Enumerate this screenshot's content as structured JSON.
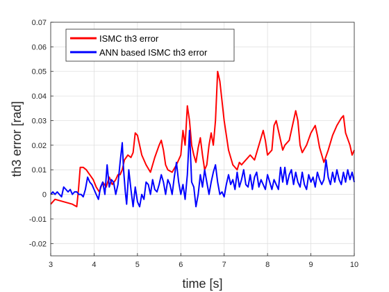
{
  "chart_data": {
    "type": "line",
    "xlabel": "time [s]",
    "ylabel": "th3 error [rad]",
    "xlim": [
      3,
      10
    ],
    "ylim": [
      -0.025,
      0.07
    ],
    "xticks": [
      3,
      4,
      5,
      6,
      7,
      8,
      9,
      10
    ],
    "xtick_labels": [
      "3",
      "4",
      "5",
      "6",
      "7",
      "8",
      "9",
      "10"
    ],
    "yticks": [
      -0.02,
      -0.01,
      0,
      0.01,
      0.02,
      0.03,
      0.04,
      0.05,
      0.06,
      0.07
    ],
    "ytick_labels": [
      "-0.02",
      "-0.01",
      "0",
      "0.01",
      "0.02",
      "0.03",
      "0.04",
      "0.05",
      "0.06",
      "0.07"
    ],
    "grid": true,
    "legend_position": "top-left",
    "series": [
      {
        "name": "ISMC th3 error",
        "color": "#ff0000",
        "x": [
          3.0,
          3.1,
          3.3,
          3.5,
          3.6,
          3.64,
          3.68,
          3.75,
          3.82,
          3.9,
          3.98,
          4.05,
          4.12,
          4.2,
          4.28,
          4.35,
          4.42,
          4.5,
          4.55,
          4.6,
          4.65,
          4.7,
          4.78,
          4.85,
          4.9,
          4.95,
          5.0,
          5.05,
          5.1,
          5.2,
          5.3,
          5.35,
          5.4,
          5.5,
          5.55,
          5.6,
          5.65,
          5.7,
          5.8,
          5.9,
          6.0,
          6.05,
          6.1,
          6.15,
          6.2,
          6.25,
          6.3,
          6.35,
          6.4,
          6.45,
          6.5,
          6.55,
          6.6,
          6.65,
          6.7,
          6.75,
          6.8,
          6.85,
          6.9,
          7.0,
          7.1,
          7.2,
          7.3,
          7.35,
          7.4,
          7.5,
          7.6,
          7.7,
          7.8,
          7.9,
          7.95,
          8.0,
          8.1,
          8.15,
          8.2,
          8.3,
          8.35,
          8.4,
          8.5,
          8.6,
          8.65,
          8.7,
          8.75,
          8.8,
          8.9,
          9.0,
          9.1,
          9.15,
          9.2,
          9.25,
          9.3,
          9.4,
          9.5,
          9.6,
          9.7,
          9.75,
          9.8,
          9.9,
          9.95,
          10.0
        ],
        "values": [
          -0.004,
          -0.002,
          -0.003,
          -0.004,
          -0.005,
          0.002,
          0.011,
          0.011,
          0.01,
          0.008,
          0.006,
          0.003,
          0.001,
          0.005,
          0.003,
          0.007,
          0.004,
          0.006,
          0.008,
          0.008,
          0.01,
          0.014,
          0.016,
          0.015,
          0.017,
          0.025,
          0.024,
          0.02,
          0.016,
          0.012,
          0.009,
          0.012,
          0.015,
          0.02,
          0.022,
          0.018,
          0.012,
          0.01,
          0.009,
          0.012,
          0.016,
          0.026,
          0.02,
          0.036,
          0.03,
          0.02,
          0.016,
          0.013,
          0.019,
          0.023,
          0.016,
          0.01,
          0.012,
          0.02,
          0.025,
          0.02,
          0.03,
          0.05,
          0.046,
          0.03,
          0.018,
          0.012,
          0.01,
          0.013,
          0.012,
          0.014,
          0.016,
          0.014,
          0.02,
          0.026,
          0.022,
          0.016,
          0.018,
          0.028,
          0.03,
          0.022,
          0.018,
          0.02,
          0.022,
          0.03,
          0.034,
          0.03,
          0.02,
          0.017,
          0.02,
          0.025,
          0.028,
          0.024,
          0.019,
          0.016,
          0.013,
          0.018,
          0.024,
          0.028,
          0.031,
          0.032,
          0.025,
          0.02,
          0.016,
          0.018
        ]
      },
      {
        "name": "ANN based ISMC th3 error",
        "color": "#0000ff",
        "x": [
          3.0,
          3.05,
          3.1,
          3.15,
          3.2,
          3.25,
          3.3,
          3.35,
          3.4,
          3.45,
          3.5,
          3.55,
          3.6,
          3.65,
          3.7,
          3.75,
          3.8,
          3.85,
          3.9,
          3.95,
          4.0,
          4.05,
          4.1,
          4.15,
          4.2,
          4.25,
          4.3,
          4.35,
          4.4,
          4.45,
          4.5,
          4.55,
          4.6,
          4.65,
          4.68,
          4.72,
          4.75,
          4.8,
          4.85,
          4.9,
          4.95,
          5.0,
          5.05,
          5.1,
          5.15,
          5.2,
          5.25,
          5.3,
          5.35,
          5.4,
          5.45,
          5.5,
          5.55,
          5.6,
          5.65,
          5.7,
          5.75,
          5.8,
          5.85,
          5.9,
          5.95,
          6.0,
          6.05,
          6.1,
          6.15,
          6.2,
          6.25,
          6.3,
          6.35,
          6.4,
          6.45,
          6.5,
          6.55,
          6.6,
          6.65,
          6.7,
          6.75,
          6.8,
          6.85,
          6.9,
          6.95,
          7.0,
          7.05,
          7.1,
          7.15,
          7.2,
          7.25,
          7.3,
          7.35,
          7.4,
          7.45,
          7.5,
          7.55,
          7.6,
          7.65,
          7.7,
          7.75,
          7.8,
          7.85,
          7.9,
          7.95,
          8.0,
          8.05,
          8.1,
          8.15,
          8.2,
          8.25,
          8.3,
          8.35,
          8.4,
          8.45,
          8.5,
          8.55,
          8.6,
          8.65,
          8.7,
          8.75,
          8.8,
          8.85,
          8.9,
          8.95,
          9.0,
          9.05,
          9.1,
          9.15,
          9.2,
          9.25,
          9.3,
          9.35,
          9.4,
          9.45,
          9.5,
          9.55,
          9.6,
          9.65,
          9.7,
          9.75,
          9.8,
          9.85,
          9.9,
          9.95,
          10.0
        ],
        "values": [
          0.0,
          0.001,
          0.0,
          0.001,
          0.0,
          -0.001,
          0.003,
          0.002,
          0.001,
          0.002,
          0.0,
          0.001,
          0.001,
          0.0,
          0.0,
          -0.001,
          0.002,
          0.007,
          0.005,
          0.004,
          0.002,
          0.0,
          -0.002,
          0.003,
          0.005,
          0.0,
          0.012,
          0.003,
          0.006,
          0.005,
          0.0,
          0.004,
          0.013,
          0.021,
          0.01,
          0.001,
          -0.004,
          0.01,
          0.002,
          -0.005,
          0.003,
          -0.003,
          -0.005,
          0.0,
          -0.002,
          0.005,
          0.004,
          0.0,
          0.006,
          0.002,
          0.001,
          0.004,
          0.008,
          0.005,
          0.0,
          0.006,
          0.004,
          0.0,
          0.007,
          0.013,
          0.005,
          0.0,
          0.004,
          -0.002,
          0.008,
          0.026,
          0.005,
          0.003,
          -0.005,
          0.0,
          0.008,
          0.003,
          0.01,
          0.005,
          0.0,
          0.005,
          0.009,
          0.012,
          0.005,
          0.0,
          0.001,
          -0.001,
          0.004,
          0.008,
          0.004,
          0.006,
          0.002,
          0.009,
          0.003,
          0.006,
          0.01,
          0.004,
          0.003,
          0.008,
          0.002,
          0.007,
          0.009,
          0.003,
          0.006,
          0.004,
          0.002,
          0.008,
          0.005,
          0.002,
          0.006,
          0.004,
          0.002,
          0.011,
          0.005,
          0.011,
          0.004,
          0.008,
          0.01,
          0.004,
          0.009,
          0.005,
          0.003,
          0.009,
          0.004,
          0.002,
          0.008,
          0.005,
          0.007,
          0.003,
          0.009,
          0.006,
          0.004,
          0.006,
          0.014,
          0.007,
          0.004,
          0.009,
          0.005,
          0.01,
          0.006,
          0.004,
          0.009,
          0.005,
          0.01,
          0.006,
          0.009,
          0.005
        ]
      }
    ]
  }
}
